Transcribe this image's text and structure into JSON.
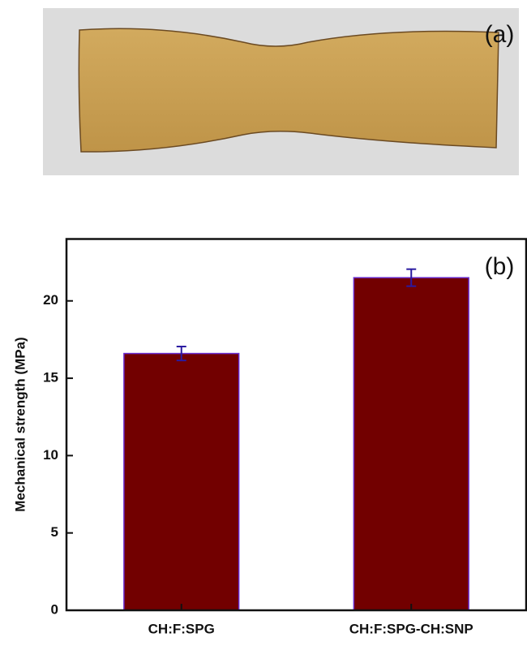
{
  "photo_label": "(a)",
  "chart_data": {
    "type": "bar",
    "annotation": "(b)",
    "y_label": "Mechanical strength (MPa)",
    "categories": [
      "CH:F:SPG",
      "CH:F:SPG-CH:SNP"
    ],
    "values": [
      16.6,
      21.5
    ],
    "errors": [
      0.45,
      0.55
    ],
    "color": "#720000",
    "edge_color": "#6a2bd0",
    "error_color": "#2a1aa0",
    "ylim": [
      0,
      24
    ],
    "yticks": [
      0,
      5,
      10,
      15,
      20
    ]
  }
}
